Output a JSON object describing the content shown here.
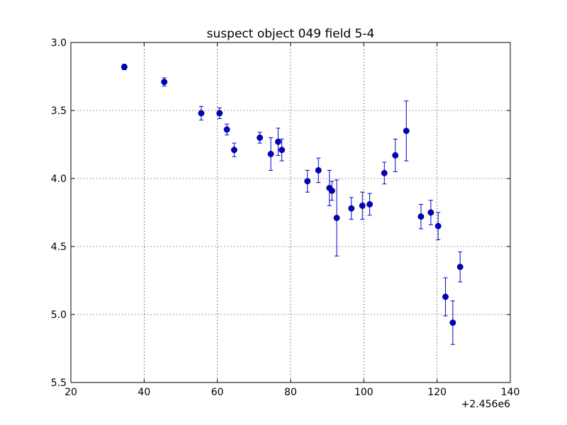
{
  "chart_data": {
    "type": "scatter",
    "title": "suspect object 049 field 5-4",
    "xlabel": "",
    "ylabel": "",
    "x_offset_label": "+2.456e6",
    "xlim": [
      20,
      140
    ],
    "ylim": [
      3.0,
      5.5
    ],
    "y_inverted": true,
    "grid": true,
    "x_ticks": [
      20,
      40,
      60,
      80,
      100,
      120,
      140
    ],
    "y_ticks": [
      "3.0",
      "3.5",
      "4.0",
      "4.5",
      "5.0",
      "5.5"
    ],
    "marker_color": "#0000cc",
    "series": [
      {
        "points": [
          {
            "x": 34.6,
            "y": 3.18,
            "err": 0.02
          },
          {
            "x": 45.5,
            "y": 3.29,
            "err": 0.03
          },
          {
            "x": 55.6,
            "y": 3.52,
            "err": 0.05
          },
          {
            "x": 60.6,
            "y": 3.52,
            "err": 0.04
          },
          {
            "x": 62.6,
            "y": 3.64,
            "err": 0.04
          },
          {
            "x": 64.6,
            "y": 3.79,
            "err": 0.05
          },
          {
            "x": 71.6,
            "y": 3.7,
            "err": 0.04
          },
          {
            "x": 74.6,
            "y": 3.82,
            "err": 0.12
          },
          {
            "x": 76.6,
            "y": 3.73,
            "err": 0.1
          },
          {
            "x": 77.6,
            "y": 3.79,
            "err": 0.08
          },
          {
            "x": 84.6,
            "y": 4.02,
            "err": 0.08
          },
          {
            "x": 87.6,
            "y": 3.94,
            "err": 0.09
          },
          {
            "x": 90.6,
            "y": 4.07,
            "err": 0.13
          },
          {
            "x": 91.3,
            "y": 4.09,
            "err": 0.07
          },
          {
            "x": 92.6,
            "y": 4.29,
            "err": 0.28
          },
          {
            "x": 96.6,
            "y": 4.22,
            "err": 0.08
          },
          {
            "x": 99.6,
            "y": 4.2,
            "err": 0.1
          },
          {
            "x": 101.6,
            "y": 4.19,
            "err": 0.08
          },
          {
            "x": 105.6,
            "y": 3.96,
            "err": 0.08
          },
          {
            "x": 108.6,
            "y": 3.83,
            "err": 0.12
          },
          {
            "x": 111.6,
            "y": 3.65,
            "err": 0.22
          },
          {
            "x": 115.6,
            "y": 4.28,
            "err": 0.09
          },
          {
            "x": 118.3,
            "y": 4.25,
            "err": 0.09
          },
          {
            "x": 120.3,
            "y": 4.35,
            "err": 0.1
          },
          {
            "x": 122.3,
            "y": 4.87,
            "err": 0.14
          },
          {
            "x": 124.3,
            "y": 5.06,
            "err": 0.16
          },
          {
            "x": 126.3,
            "y": 4.65,
            "err": 0.11
          }
        ]
      }
    ]
  }
}
